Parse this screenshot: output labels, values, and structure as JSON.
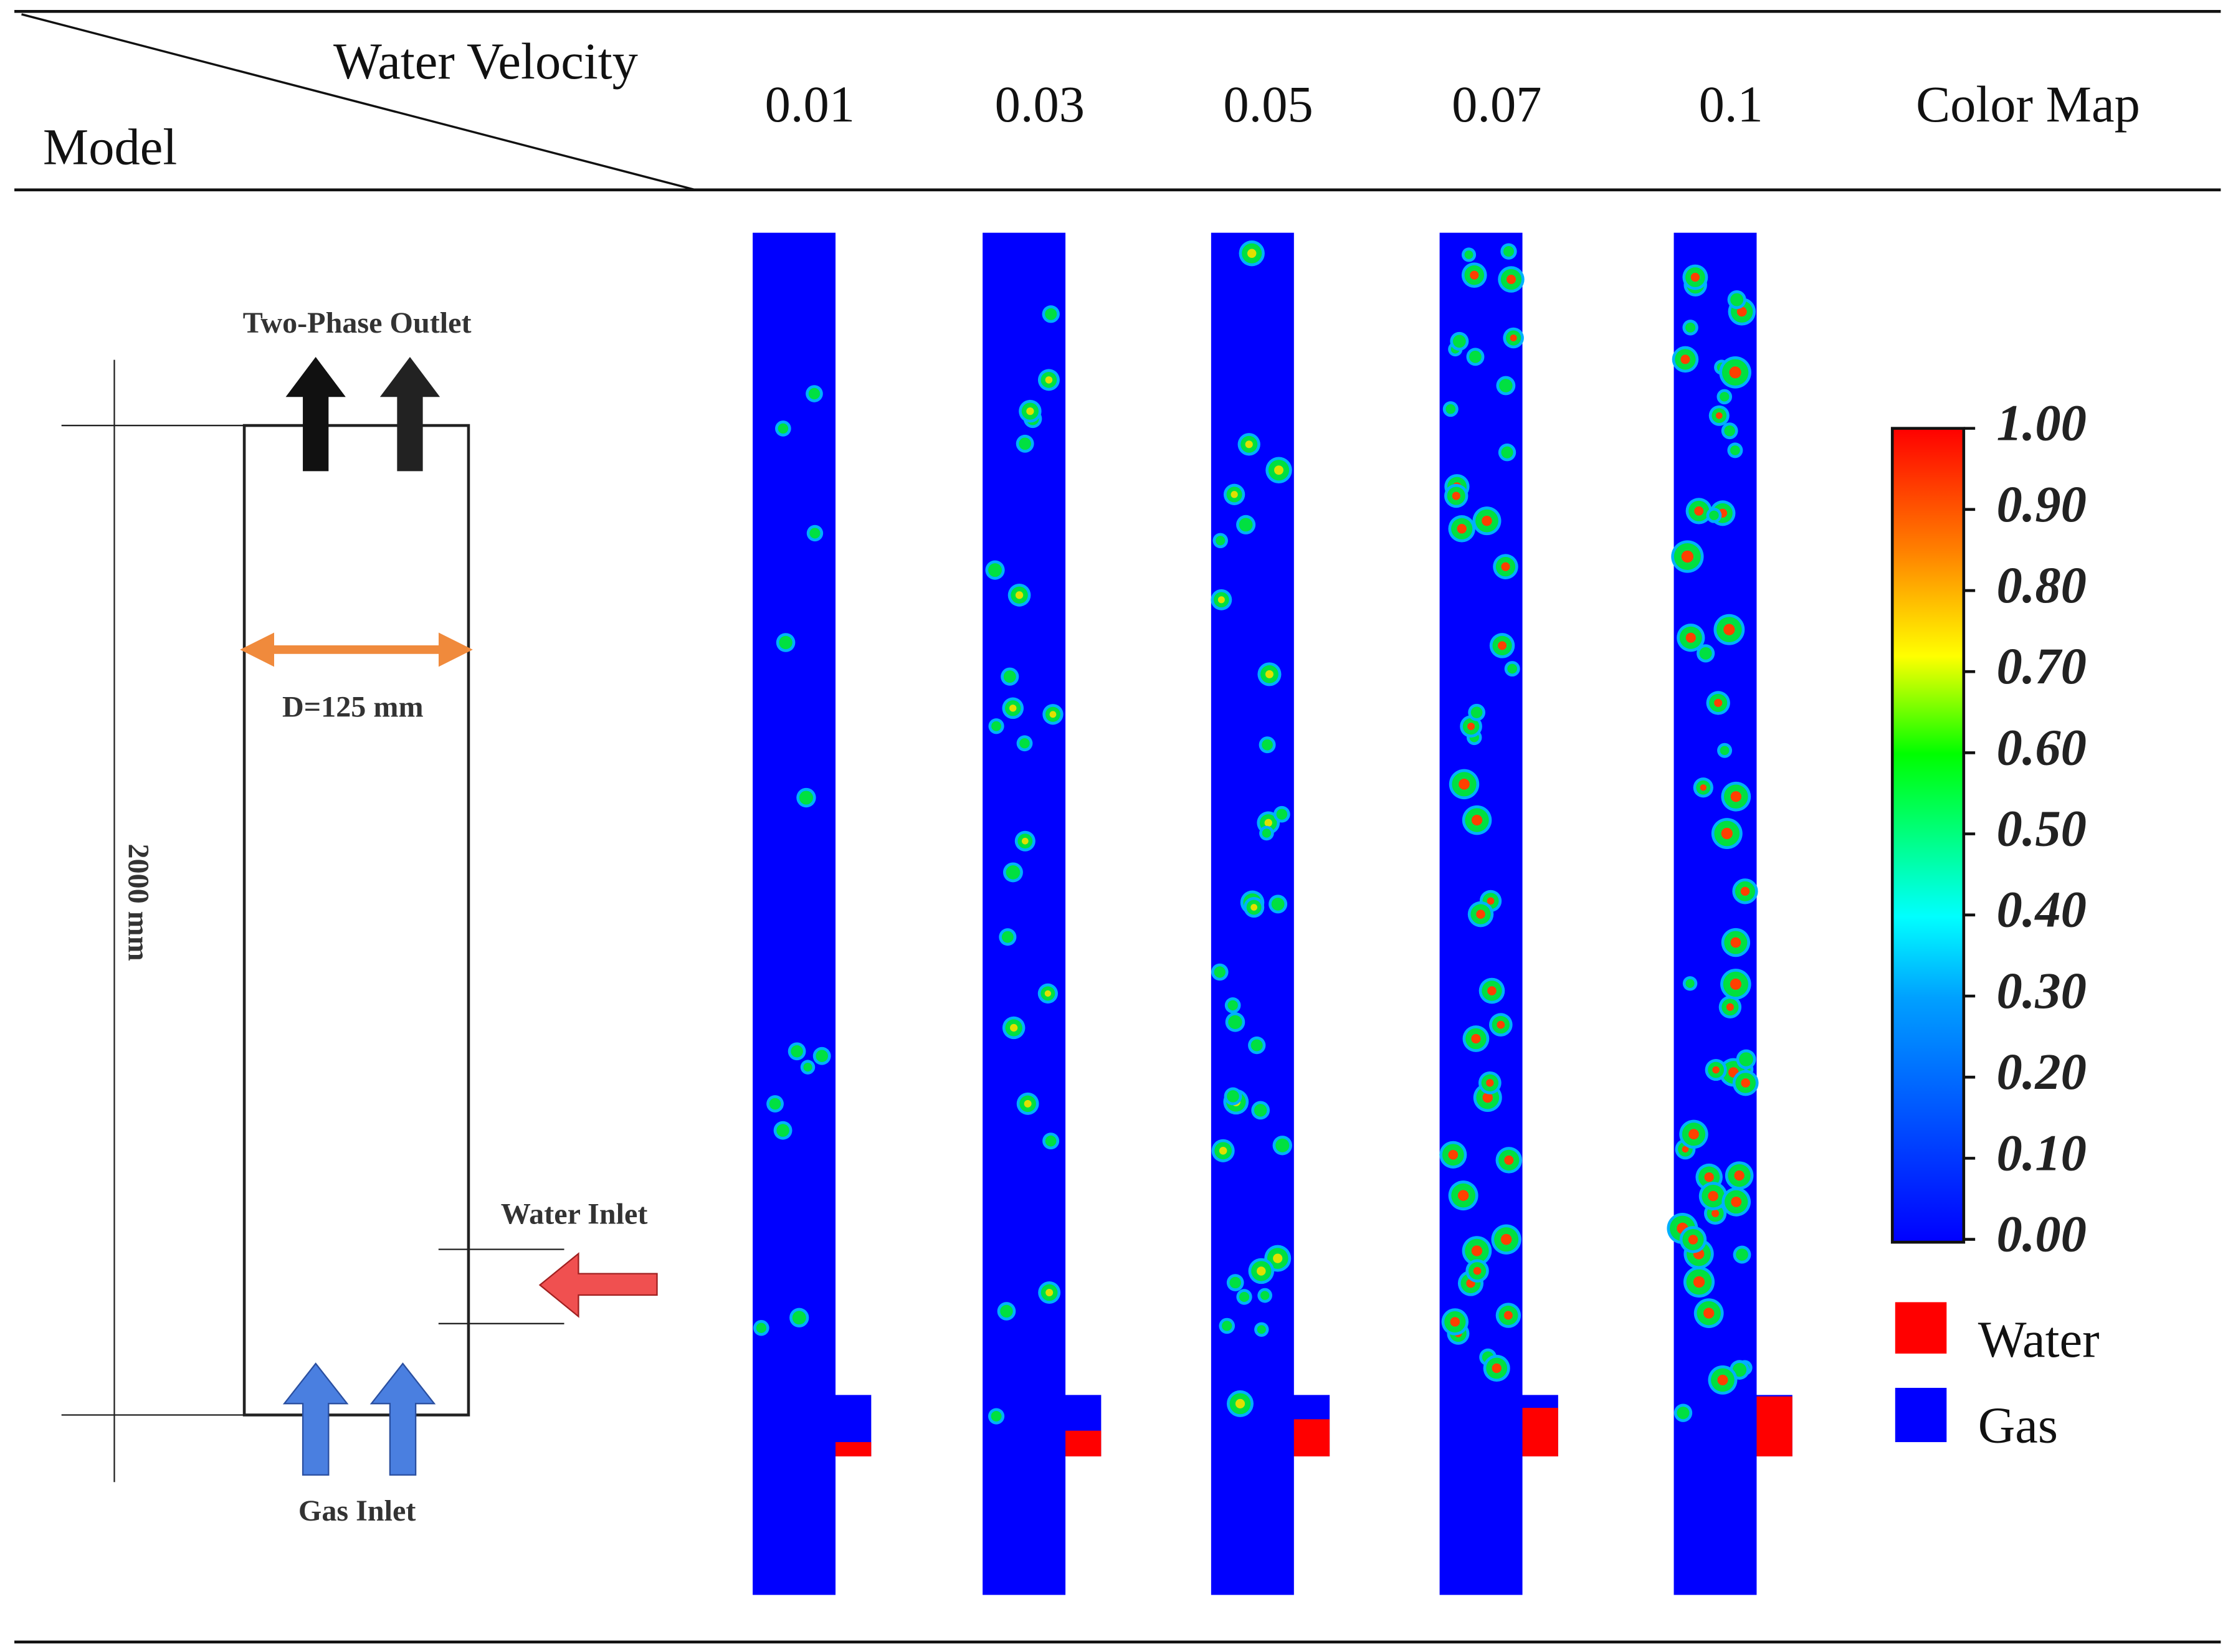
{
  "header": {
    "row_header": "Model",
    "column_header": "Water Velocity",
    "columns": [
      "0.01",
      "0.03",
      "0.05",
      "0.07",
      "0.1"
    ],
    "color_map": "Color Map"
  },
  "model": {
    "outlet": "Two-Phase Outlet",
    "diameter": "D=125 mm",
    "height": "2000 mm",
    "water_inlet": "Water Inlet",
    "gas_inlet": "Gas Inlet"
  },
  "color_map": {
    "ticks": [
      "1.00",
      "0.90",
      "0.80",
      "0.70",
      "0.60",
      "0.50",
      "0.40",
      "0.30",
      "0.20",
      "0.10",
      "0.00"
    ],
    "legend": [
      "Water",
      "Gas"
    ]
  }
}
